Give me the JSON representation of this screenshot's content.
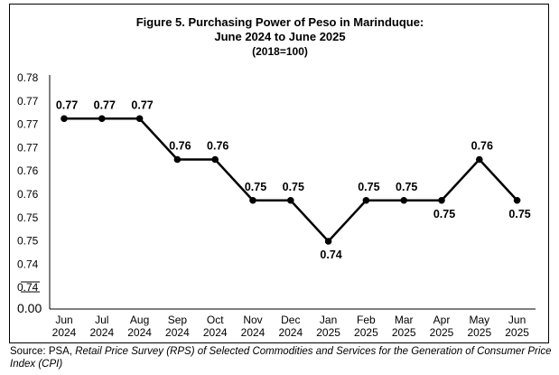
{
  "chart_data": {
    "type": "line",
    "title_lines": [
      "Figure 5. Purchasing Power of Peso in Marinduque:",
      "June 2024 to June 2025",
      "(2018=100)"
    ],
    "categories": [
      [
        "Jun",
        "2024"
      ],
      [
        "Jul",
        "2024"
      ],
      [
        "Aug",
        "2024"
      ],
      [
        "Sep",
        "2024"
      ],
      [
        "Oct",
        "2024"
      ],
      [
        "Nov",
        "2024"
      ],
      [
        "Dec",
        "2024"
      ],
      [
        "Jan",
        "2025"
      ],
      [
        "Feb",
        "2025"
      ],
      [
        "Mar",
        "2025"
      ],
      [
        "Apr",
        "2025"
      ],
      [
        "May",
        "2025"
      ],
      [
        "Jun",
        "2025"
      ]
    ],
    "series": [
      {
        "values": [
          0.77,
          0.77,
          0.77,
          0.76,
          0.76,
          0.75,
          0.75,
          0.74,
          0.75,
          0.75,
          0.75,
          0.76,
          0.75
        ]
      }
    ],
    "data_labels": [
      "0.77",
      "0.77",
      "0.77",
      "0.76",
      "0.76",
      "0.75",
      "0.75",
      "0.74",
      "0.75",
      "0.75",
      "0.75",
      "0.76",
      "0.75"
    ],
    "label_positions": [
      "above",
      "above",
      "above",
      "above",
      "above",
      "above",
      "above",
      "below",
      "above",
      "above",
      "below",
      "above",
      "below"
    ],
    "y_tick_labels": [
      "0.78",
      "0.77",
      "0.77",
      "0.77",
      "0.76",
      "0.76",
      "0.75",
      "0.75",
      "0.74",
      "0.74"
    ],
    "y_zero_label": "0.00",
    "y_axis_break": true,
    "grid": false,
    "legend": "none",
    "line_color": "#000000",
    "marker_color": "#000000"
  },
  "source": {
    "prefix": "Source: PSA, ",
    "italic": "Retail Price Survey (RPS) of Selected Commodities and Services for the Generation of Consumer Price Index (CPI)"
  }
}
